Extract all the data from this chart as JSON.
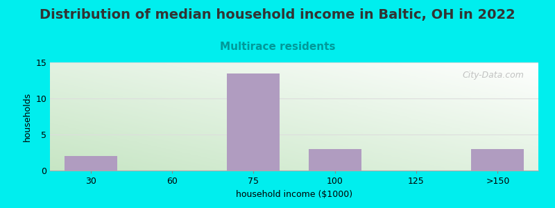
{
  "title": "Distribution of median household income in Baltic, OH in 2022",
  "subtitle": "Multirace residents",
  "xlabel": "household income ($1000)",
  "ylabel": "households",
  "categories": [
    "30",
    "60",
    "75",
    "100",
    "125",
    ">150"
  ],
  "values": [
    2,
    0,
    13.5,
    3,
    0,
    3
  ],
  "bar_color": "#b09cc0",
  "background_color": "#00EEEE",
  "plot_bg_color_topleft": "#e8f5e2",
  "plot_bg_color_bottomleft": "#c8e6c0",
  "plot_bg_color_topright": "#f0f8f0",
  "plot_bg_color_bottomright": "#e0ede0",
  "ylim": [
    0,
    15
  ],
  "yticks": [
    0,
    5,
    10,
    15
  ],
  "title_fontsize": 14,
  "subtitle_fontsize": 11,
  "subtitle_color": "#009999",
  "title_color": "#333333",
  "axis_label_fontsize": 9,
  "watermark": "City-Data.com",
  "grid_color": "#dddddd"
}
